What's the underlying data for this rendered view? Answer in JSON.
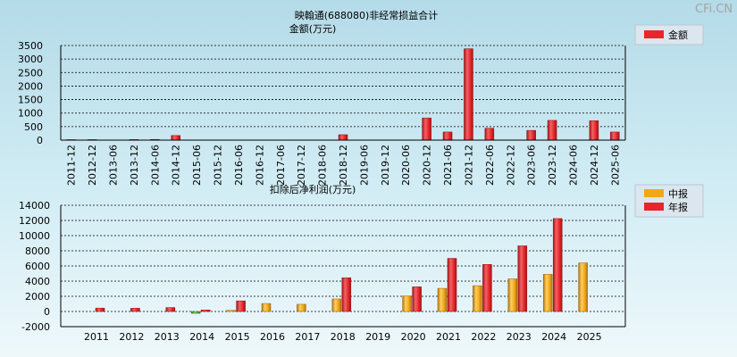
{
  "watermark": "CFi.CN",
  "chart_data": [
    {
      "type": "bar",
      "title": "映翰通(688080)非经常损益合计",
      "ylabel": "金额(万元)",
      "categories": [
        "2011-12",
        "2012-12",
        "2013-06",
        "2013-12",
        "2014-06",
        "2014-12",
        "2015-06",
        "2015-12",
        "2016-06",
        "2016-12",
        "2017-06",
        "2017-12",
        "2018-06",
        "2018-12",
        "2019-06",
        "2019-12",
        "2020-06",
        "2020-12",
        "2021-06",
        "2021-12",
        "2022-06",
        "2022-12",
        "2023-06",
        "2023-12",
        "2024-06",
        "2024-12",
        "2025-06"
      ],
      "series": [
        {
          "name": "金额",
          "color": "#e8262a",
          "values": [
            18,
            20,
            0,
            22,
            26,
            170,
            0,
            0,
            0,
            0,
            0,
            0,
            0,
            200,
            0,
            0,
            0,
            820,
            300,
            3380,
            440,
            0,
            360,
            730,
            0,
            720,
            300
          ]
        }
      ],
      "ylim": [
        0,
        3500
      ],
      "yticks": [
        0,
        500,
        1000,
        1500,
        2000,
        2500,
        3000,
        3500
      ],
      "legend": {
        "position": "top-right",
        "labels": [
          "金额"
        ]
      }
    },
    {
      "type": "bar",
      "title": "扣除后净利润(万元)",
      "categories": [
        "2011",
        "2012",
        "2013",
        "2014",
        "2015",
        "2016",
        "2017",
        "2018",
        "2019",
        "2020",
        "2021",
        "2022",
        "2023",
        "2024",
        "2025"
      ],
      "series": [
        {
          "name": "中报",
          "color": "#f0a818",
          "values": [
            0,
            0,
            0,
            -250,
            150,
            1050,
            950,
            1650,
            0,
            2050,
            3050,
            3400,
            4300,
            4900,
            6400
          ]
        },
        {
          "name": "年报",
          "color": "#e8262a",
          "values": [
            450,
            430,
            520,
            200,
            1400,
            0,
            0,
            4450,
            0,
            3250,
            7000,
            6200,
            8650,
            12250,
            null
          ]
        }
      ],
      "ylim": [
        -2000,
        14000
      ],
      "yticks": [
        -2000,
        0,
        2000,
        4000,
        6000,
        8000,
        10000,
        12000,
        14000
      ],
      "legend": {
        "position": "top-right",
        "labels": [
          "中报",
          "年报"
        ]
      }
    }
  ]
}
